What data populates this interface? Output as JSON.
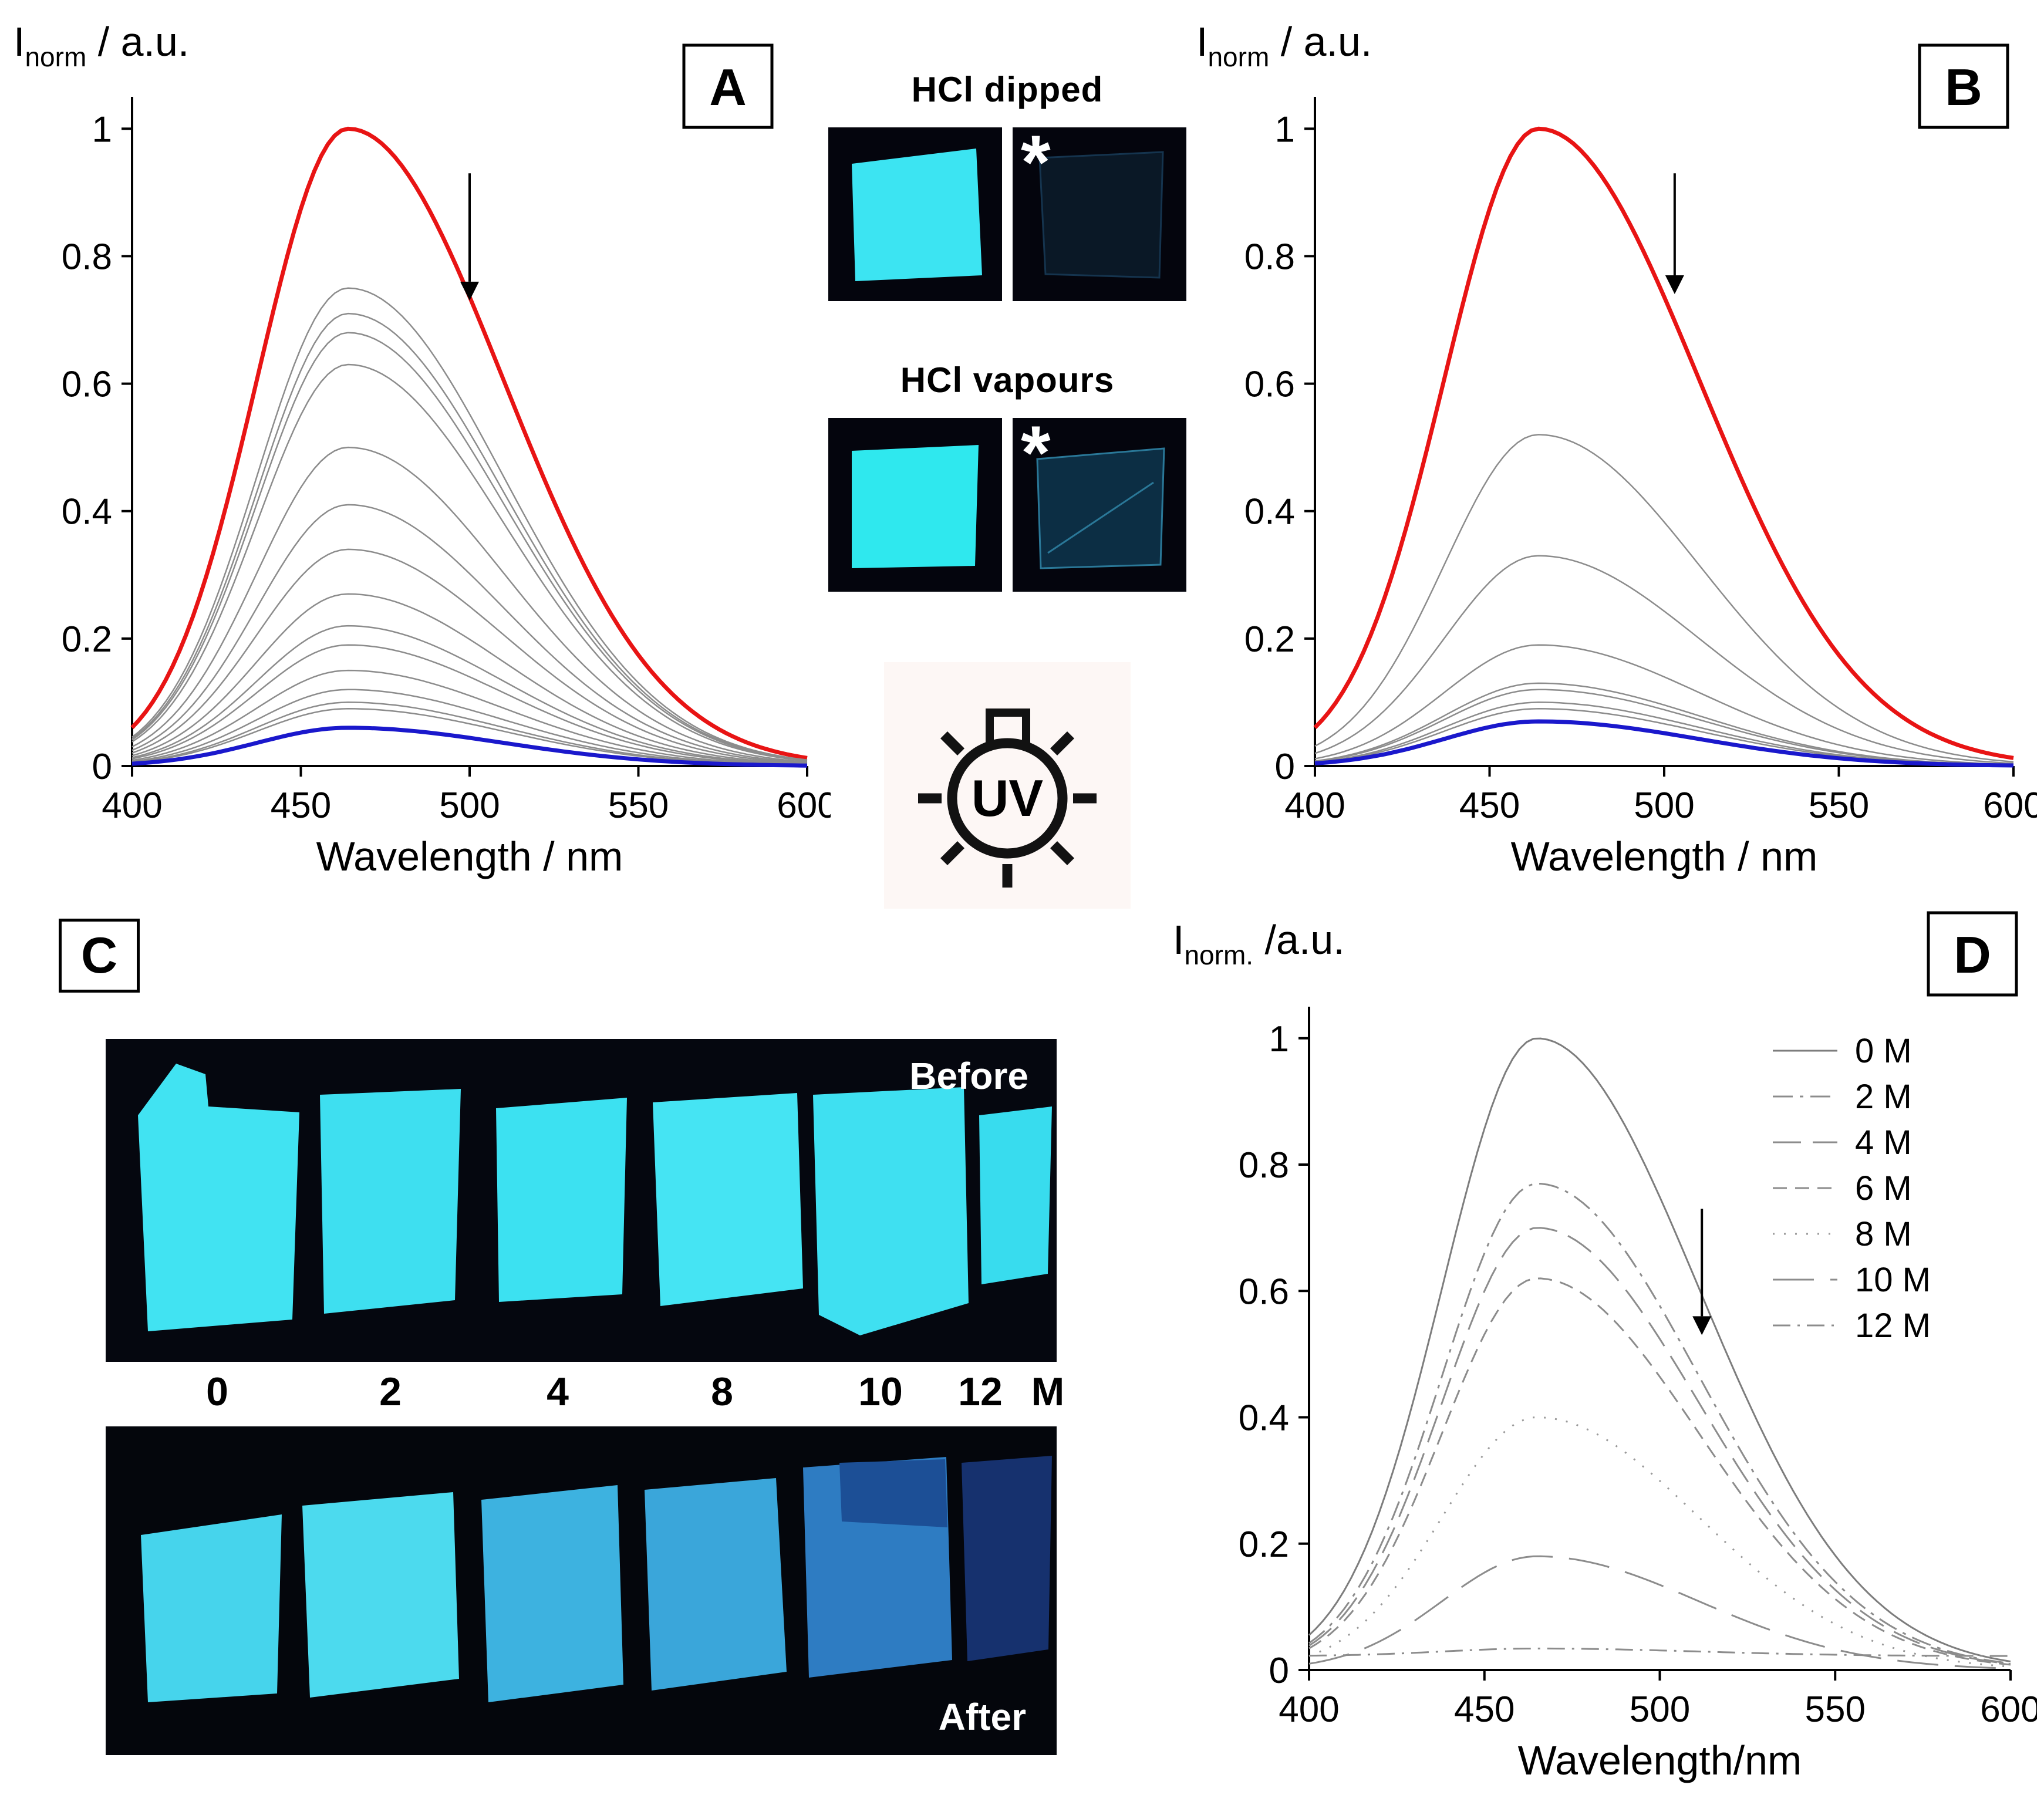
{
  "palette": {
    "initial_curve_red": "#e81414",
    "final_curve_blue": "#1a18cc",
    "intermediate_gray": "#8c8c8c",
    "film_cyan_bright": "#3fe2f2",
    "film_blue_faded": "#2e7cc2",
    "film_navy_dark": "#16316e",
    "photo_background": "#04060e"
  },
  "panels": {
    "a": "A",
    "b": "B",
    "c": "C",
    "d": "D"
  },
  "middle": {
    "hcl_dipped_title": "HCl dipped",
    "hcl_vapours_title": "HCl vapours",
    "asterisk": "*",
    "uv_label": "UV"
  },
  "panel_c": {
    "before_label": "Before",
    "after_label": "After",
    "concentrations": [
      "0",
      "2",
      "4",
      "8",
      "10",
      "12",
      "M"
    ]
  },
  "chart_data": [
    {
      "id": "A",
      "type": "line",
      "panel_label": "A",
      "xlabel": "Wavelength / nm",
      "ylabel": {
        "main": "I",
        "sub": "norm",
        "rest": " / a.u."
      },
      "xlim": [
        400,
        600
      ],
      "ylim": [
        0,
        1.05
      ],
      "xticks": [
        400,
        450,
        500,
        550,
        600
      ],
      "yticks": [
        0,
        0.2,
        0.4,
        0.6,
        0.8,
        1
      ],
      "peak_nm": 464,
      "sigma_left": 27,
      "sigma_right": 46,
      "show_legend": false,
      "arrow": {
        "x_nm": 500,
        "y_from": 0.93,
        "y_to": 0.76
      },
      "series": [
        {
          "name": "",
          "peak": 1.0,
          "color": "#e81414",
          "width": 7
        },
        {
          "name": "",
          "peak": 0.75,
          "color": "#8c8c8c",
          "width": 2.5
        },
        {
          "name": "",
          "peak": 0.71,
          "color": "#8c8c8c",
          "width": 2.5
        },
        {
          "name": "",
          "peak": 0.68,
          "color": "#8c8c8c",
          "width": 2.5
        },
        {
          "name": "",
          "peak": 0.63,
          "color": "#8c8c8c",
          "width": 2.5
        },
        {
          "name": "",
          "peak": 0.5,
          "color": "#8c8c8c",
          "width": 2.5
        },
        {
          "name": "",
          "peak": 0.41,
          "color": "#8c8c8c",
          "width": 2.5
        },
        {
          "name": "",
          "peak": 0.34,
          "color": "#8c8c8c",
          "width": 2.5
        },
        {
          "name": "",
          "peak": 0.27,
          "color": "#8c8c8c",
          "width": 2.5
        },
        {
          "name": "",
          "peak": 0.22,
          "color": "#8c8c8c",
          "width": 2.5
        },
        {
          "name": "",
          "peak": 0.19,
          "color": "#8c8c8c",
          "width": 2.5
        },
        {
          "name": "",
          "peak": 0.15,
          "color": "#8c8c8c",
          "width": 2.5
        },
        {
          "name": "",
          "peak": 0.12,
          "color": "#8c8c8c",
          "width": 2.5
        },
        {
          "name": "",
          "peak": 0.1,
          "color": "#8c8c8c",
          "width": 2.5
        },
        {
          "name": "",
          "peak": 0.09,
          "color": "#8c8c8c",
          "width": 2.5
        },
        {
          "name": "",
          "peak": 0.06,
          "color": "#1a18cc",
          "width": 7
        }
      ]
    },
    {
      "id": "B",
      "type": "line",
      "panel_label": "B",
      "xlabel": "Wavelength / nm",
      "ylabel": {
        "main": "I",
        "sub": "norm",
        "rest": " / a.u."
      },
      "xlim": [
        400,
        600
      ],
      "ylim": [
        0,
        1.05
      ],
      "xticks": [
        400,
        450,
        500,
        550,
        600
      ],
      "yticks": [
        0,
        0.2,
        0.4,
        0.6,
        0.8,
        1
      ],
      "peak_nm": 464,
      "sigma_left": 27,
      "sigma_right": 46,
      "show_legend": false,
      "arrow": {
        "x_nm": 503,
        "y_from": 0.93,
        "y_to": 0.77
      },
      "series": [
        {
          "name": "",
          "peak": 1.0,
          "color": "#e81414",
          "width": 7
        },
        {
          "name": "",
          "peak": 0.52,
          "color": "#8c8c8c",
          "width": 2.5
        },
        {
          "name": "",
          "peak": 0.33,
          "color": "#8c8c8c",
          "width": 2.5
        },
        {
          "name": "",
          "peak": 0.19,
          "color": "#8c8c8c",
          "width": 2.5
        },
        {
          "name": "",
          "peak": 0.13,
          "color": "#8c8c8c",
          "width": 2.5
        },
        {
          "name": "",
          "peak": 0.12,
          "color": "#8c8c8c",
          "width": 2.5
        },
        {
          "name": "",
          "peak": 0.1,
          "color": "#8c8c8c",
          "width": 2.5
        },
        {
          "name": "",
          "peak": 0.09,
          "color": "#8c8c8c",
          "width": 2.5
        },
        {
          "name": "",
          "peak": 0.07,
          "color": "#1a18cc",
          "width": 7
        }
      ]
    },
    {
      "id": "D",
      "type": "line",
      "panel_label": "D",
      "xlabel": "Wavelength/nm",
      "ylabel": {
        "main": "I",
        "sub": "norm.",
        "rest": " /a.u."
      },
      "xlim": [
        400,
        600
      ],
      "ylim": [
        0,
        1.05
      ],
      "xticks": [
        400,
        450,
        500,
        550,
        600
      ],
      "yticks": [
        0,
        0.2,
        0.4,
        0.6,
        0.8,
        1
      ],
      "peak_nm": 465,
      "sigma_left": 27,
      "sigma_right": 46,
      "show_legend": true,
      "arrow": {
        "x_nm": 512,
        "y_from": 0.73,
        "y_to": 0.56
      },
      "series": [
        {
          "name": "0 M",
          "peak": 1.0,
          "color": "#7d7d7d",
          "width": 3
        },
        {
          "name": "2 M",
          "peak": 0.77,
          "color": "#8c8c8c",
          "width": 3,
          "dash": "34,12,6,12"
        },
        {
          "name": "4 M",
          "peak": 0.7,
          "color": "#8c8c8c",
          "width": 3,
          "dash": "48,20"
        },
        {
          "name": "6 M",
          "peak": 0.62,
          "color": "#8c8c8c",
          "width": 3,
          "dash": "24,14"
        },
        {
          "name": "8 M",
          "peak": 0.4,
          "color": "#9a9a9a",
          "width": 3,
          "dash": "3,16"
        },
        {
          "name": "10 M",
          "peak": 0.18,
          "color": "#8c8c8c",
          "width": 3,
          "dash": "70,28"
        },
        {
          "name": "12 M",
          "peak": 0.012,
          "base": 0.022,
          "color": "#8c8c8c",
          "width": 3,
          "dash": "30,12,4,12"
        }
      ]
    }
  ]
}
